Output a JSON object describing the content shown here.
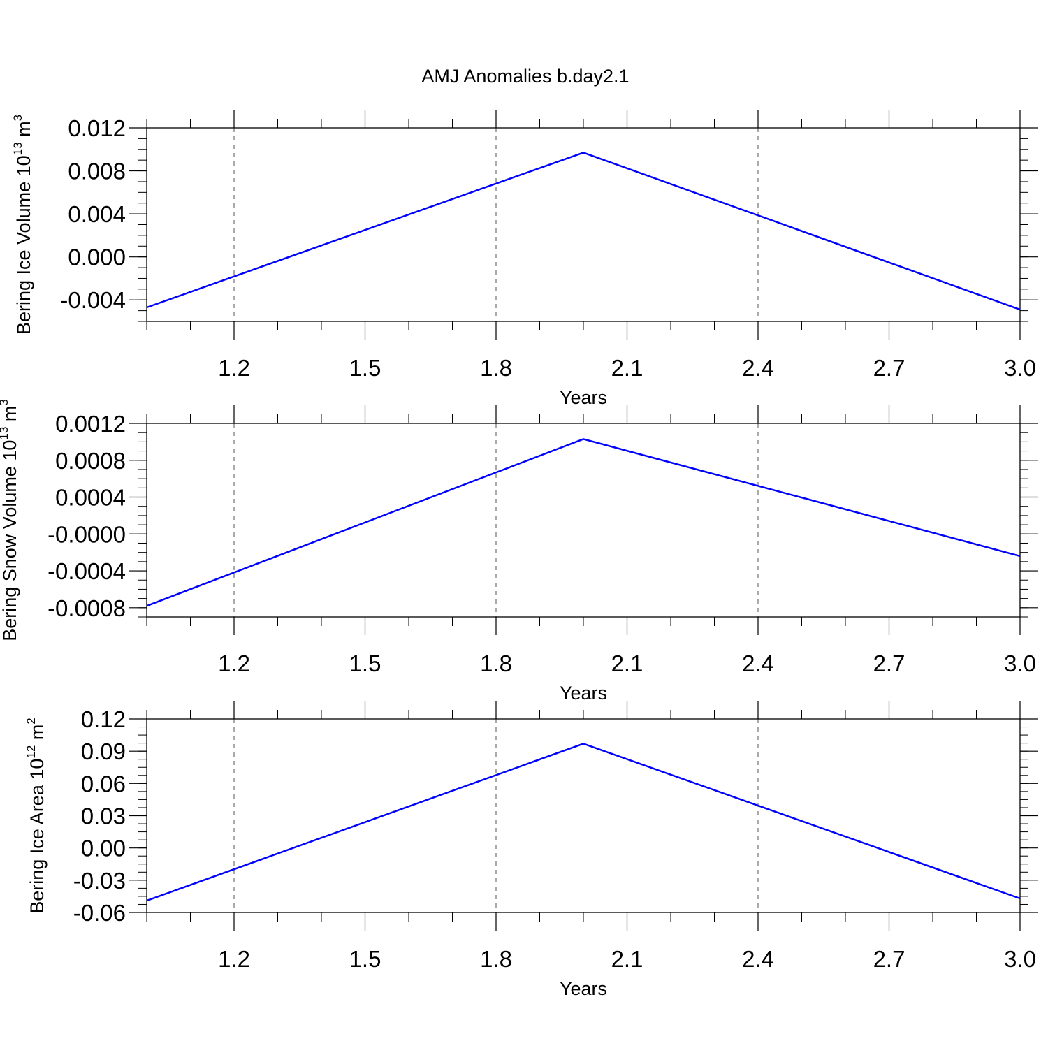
{
  "title": "AMJ Anomalies b.day2.1",
  "colors": {
    "line": "#0000ff",
    "axis": "#000000",
    "grid": "#555555",
    "background": "#ffffff"
  },
  "chart_data": [
    {
      "type": "line",
      "xlabel": "Years",
      "ylabel": {
        "prefix": "Bering Ice Volume 10",
        "exp": "13",
        "unit": " m",
        "unit_exp": "3"
      },
      "xlim": [
        1.0,
        3.0
      ],
      "ylim": [
        -0.006,
        0.012
      ],
      "x_ticks": [
        1.2,
        1.5,
        1.8,
        2.1,
        2.4,
        2.7,
        3.0
      ],
      "x_tick_labels": [
        "1.2",
        "1.5",
        "1.8",
        "2.1",
        "2.4",
        "2.7",
        "3.0"
      ],
      "y_ticks": [
        0.012,
        0.008,
        0.004,
        0.0,
        -0.004
      ],
      "y_tick_labels": [
        "0.012",
        "0.008",
        "0.004",
        "0.000",
        "-0.004"
      ],
      "grid": "vertical-dashed",
      "series": [
        {
          "x": [
            1,
            2,
            3
          ],
          "y": [
            -0.0047,
            0.0097,
            -0.0049
          ]
        }
      ]
    },
    {
      "type": "line",
      "xlabel": "Years",
      "ylabel": {
        "prefix": "Bering Snow Volume 10",
        "exp": "13",
        "unit": " m",
        "unit_exp": "3"
      },
      "xlim": [
        1.0,
        3.0
      ],
      "ylim": [
        -0.0009,
        0.0012
      ],
      "x_ticks": [
        1.2,
        1.5,
        1.8,
        2.1,
        2.4,
        2.7,
        3.0
      ],
      "x_tick_labels": [
        "1.2",
        "1.5",
        "1.8",
        "2.1",
        "2.4",
        "2.7",
        "3.0"
      ],
      "y_ticks": [
        0.0012,
        0.0008,
        0.0004,
        0.0,
        -0.0004,
        -0.0008
      ],
      "y_tick_labels": [
        "0.0012",
        "0.0008",
        "0.0004",
        "-0.0000",
        "-0.0004",
        "-0.0008"
      ],
      "grid": "vertical-dashed",
      "series": [
        {
          "x": [
            1,
            2,
            3
          ],
          "y": [
            -0.00078,
            0.00103,
            -0.00024
          ]
        }
      ]
    },
    {
      "type": "line",
      "xlabel": "Years",
      "ylabel": {
        "prefix": "Bering Ice Area 10",
        "exp": "12",
        "unit": " m",
        "unit_exp": "2"
      },
      "xlim": [
        1.0,
        3.0
      ],
      "ylim": [
        -0.06,
        0.12
      ],
      "x_ticks": [
        1.2,
        1.5,
        1.8,
        2.1,
        2.4,
        2.7,
        3.0
      ],
      "x_tick_labels": [
        "1.2",
        "1.5",
        "1.8",
        "2.1",
        "2.4",
        "2.7",
        "3.0"
      ],
      "y_ticks": [
        0.12,
        0.09,
        0.06,
        0.03,
        0.0,
        -0.03,
        -0.06
      ],
      "y_tick_labels": [
        "0.12",
        "0.09",
        "0.06",
        "0.03",
        "0.00",
        "-0.03",
        "-0.06"
      ],
      "grid": "vertical-dashed",
      "series": [
        {
          "x": [
            1,
            2,
            3
          ],
          "y": [
            -0.049,
            0.097,
            -0.047
          ]
        }
      ]
    }
  ]
}
